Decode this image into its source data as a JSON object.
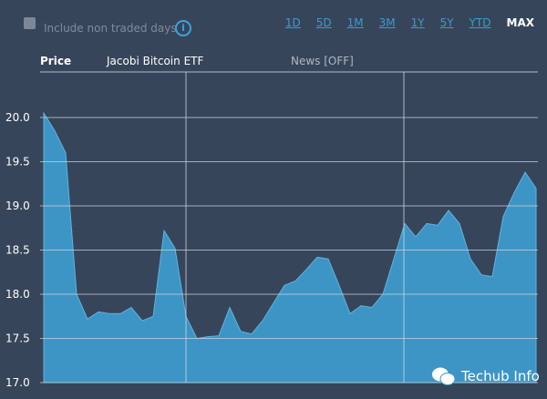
{
  "controls": {
    "include_non_traded_label": "Include non traded days",
    "include_non_traded_checked": false,
    "info_icon": "info-icon",
    "ranges": [
      "1D",
      "5D",
      "1M",
      "3M",
      "1Y",
      "5Y",
      "YTD",
      "MAX"
    ],
    "active_range": "MAX"
  },
  "header": {
    "price_label": "Price",
    "instrument": "Jacobi Bitcoin ETF",
    "news": "News [OFF]"
  },
  "watermark": "Techub Info",
  "colors": {
    "background": "#37455a",
    "area_fill": "#3d95c5",
    "line": "#5fb3e0",
    "grid": "#c9d2de",
    "active_range": "#ffffff",
    "range_link": "#3b9bd0"
  },
  "chart_data": {
    "type": "area",
    "title": "",
    "xlabel": "",
    "ylabel": "",
    "ylim": [
      17.0,
      20.0
    ],
    "yticks": [
      "20.0",
      "19.5",
      "19.0",
      "18.5",
      "18.0",
      "17.5",
      "17.0"
    ],
    "grid": true,
    "series": [
      {
        "values": [
          20.05,
          19.85,
          19.6,
          18.0,
          17.72,
          17.8,
          17.78,
          17.78,
          17.85,
          17.7,
          17.75,
          18.72,
          18.52,
          17.75,
          17.5,
          17.52,
          17.53,
          17.85,
          17.58,
          17.55,
          17.7,
          17.9,
          18.1,
          18.15,
          18.28,
          18.42,
          18.4,
          18.1,
          17.78,
          17.87,
          17.85,
          18.0,
          18.4,
          18.8,
          18.65,
          18.8,
          18.78,
          18.95,
          18.8,
          18.4,
          18.22,
          18.2,
          18.88,
          19.15,
          19.38,
          19.2
        ]
      }
    ]
  }
}
